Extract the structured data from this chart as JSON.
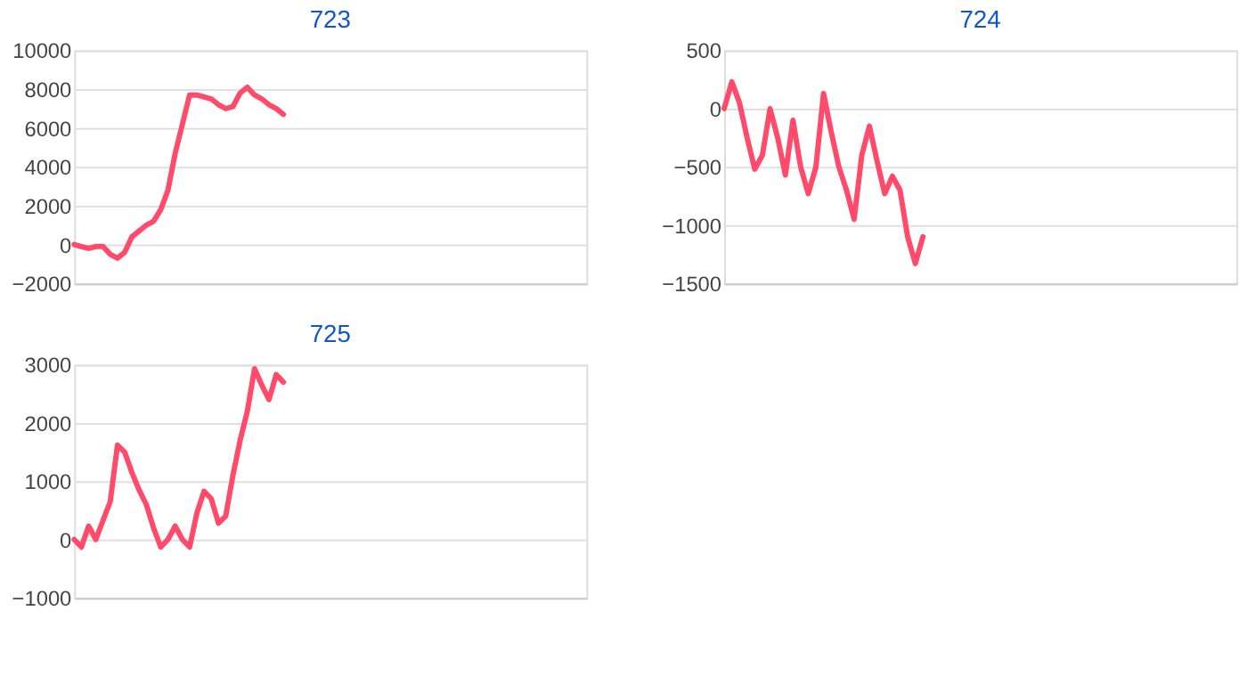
{
  "chart_data": [
    {
      "type": "line",
      "title": "723",
      "categories": [
        null,
        null,
        null,
        null,
        null,
        null,
        null,
        null,
        null,
        null,
        null,
        null,
        null,
        null,
        null,
        null,
        null,
        null,
        null,
        null,
        null,
        null,
        null,
        null,
        null,
        null,
        null,
        null,
        null,
        null,
        null,
        null,
        null,
        null,
        null,
        null,
        null,
        null,
        null,
        null,
        null,
        null,
        null,
        null,
        null,
        null,
        null,
        null,
        null,
        null,
        null,
        null,
        null,
        null,
        null,
        null,
        null,
        null,
        null,
        null,
        null,
        null,
        null,
        null,
        null,
        null,
        null,
        null,
        null,
        null,
        null,
        null
      ],
      "series": [
        {
          "color": "#ff4a6a",
          "values": [
            0,
            -100,
            -200,
            -100,
            -100,
            -500,
            -700,
            -400,
            400,
            700,
            1000,
            1200,
            1800,
            2800,
            4700,
            6200,
            7700,
            7700,
            7600,
            7500,
            7200,
            7000,
            7100,
            7800,
            8100,
            7700,
            7500,
            7200,
            7000,
            6700,
            null,
            null,
            null,
            null,
            null,
            null,
            null,
            null,
            null,
            null,
            null,
            null,
            null,
            null,
            null,
            null,
            null,
            null,
            null,
            null,
            null,
            null,
            null,
            null,
            null,
            null,
            null,
            null,
            null,
            null,
            null,
            null,
            null,
            null,
            null,
            null,
            null,
            null,
            null,
            null,
            null,
            null
          ]
        }
      ],
      "ylim": [
        -2000,
        10000
      ],
      "yticks": [
        -2000,
        0,
        2000,
        4000,
        6000,
        8000,
        10000
      ],
      "grid": "y",
      "tick_labels": "y"
    },
    {
      "type": "line",
      "title": "724",
      "categories": [
        null,
        null,
        null,
        null,
        null,
        null,
        null,
        null,
        null,
        null,
        null,
        null,
        null,
        null,
        null,
        null,
        null,
        null,
        null,
        null,
        null,
        null,
        null,
        null,
        null,
        null,
        null,
        null,
        null,
        null,
        null,
        null,
        null,
        null,
        null,
        null,
        null,
        null,
        null,
        null,
        null,
        null,
        null,
        null,
        null,
        null,
        null,
        null,
        null,
        null,
        null,
        null,
        null,
        null,
        null,
        null,
        null,
        null,
        null,
        null,
        null,
        null,
        null,
        null,
        null,
        null,
        null,
        null
      ],
      "series": [
        {
          "color": "#ff4a6a",
          "values": [
            0,
            230,
            50,
            -250,
            -520,
            -400,
            0,
            -250,
            -570,
            -100,
            -500,
            -730,
            -500,
            130,
            -200,
            -500,
            -700,
            -950,
            -400,
            -150,
            -450,
            -730,
            -580,
            -700,
            -1100,
            -1330,
            -1100,
            null,
            null,
            null,
            null,
            null,
            null,
            null,
            null,
            null,
            null,
            null,
            null,
            null,
            null,
            null,
            null,
            null,
            null,
            null,
            null,
            null,
            null,
            null,
            null,
            null,
            null,
            null,
            null,
            null,
            null,
            null,
            null,
            null,
            null,
            null,
            null,
            null,
            null,
            null,
            null,
            null
          ]
        }
      ],
      "ylim": [
        -1500,
        500
      ],
      "yticks": [
        -1500,
        -1000,
        -500,
        0,
        500
      ],
      "grid": "y",
      "tick_labels": "y"
    },
    {
      "type": "line",
      "title": "725",
      "categories": [
        null,
        null,
        null,
        null,
        null,
        null,
        null,
        null,
        null,
        null,
        null,
        null,
        null,
        null,
        null,
        null,
        null,
        null,
        null,
        null,
        null,
        null,
        null,
        null,
        null,
        null,
        null,
        null,
        null,
        null,
        null,
        null,
        null,
        null,
        null,
        null,
        null,
        null,
        null,
        null,
        null,
        null,
        null,
        null,
        null,
        null,
        null,
        null,
        null,
        null,
        null,
        null,
        null,
        null,
        null,
        null,
        null,
        null,
        null,
        null,
        null,
        null,
        null,
        null,
        null,
        null,
        null,
        null,
        null,
        null,
        null,
        null
      ],
      "series": [
        {
          "color": "#ff4a6a",
          "values": [
            0,
            -130,
            230,
            0,
            330,
            650,
            1620,
            1500,
            1150,
            850,
            600,
            200,
            -130,
            0,
            230,
            0,
            -130,
            450,
            830,
            700,
            280,
            400,
            1100,
            1700,
            2200,
            2930,
            2650,
            2400,
            2830,
            2700,
            null,
            null,
            null,
            null,
            null,
            null,
            null,
            null,
            null,
            null,
            null,
            null,
            null,
            null,
            null,
            null,
            null,
            null,
            null,
            null,
            null,
            null,
            null,
            null,
            null,
            null,
            null,
            null,
            null,
            null,
            null,
            null,
            null,
            null,
            null,
            null,
            null,
            null,
            null,
            null,
            null,
            null
          ]
        }
      ],
      "ylim": [
        -1000,
        3000
      ],
      "yticks": [
        -1000,
        0,
        1000,
        2000,
        3000
      ],
      "grid": "y",
      "tick_labels": "y"
    }
  ]
}
